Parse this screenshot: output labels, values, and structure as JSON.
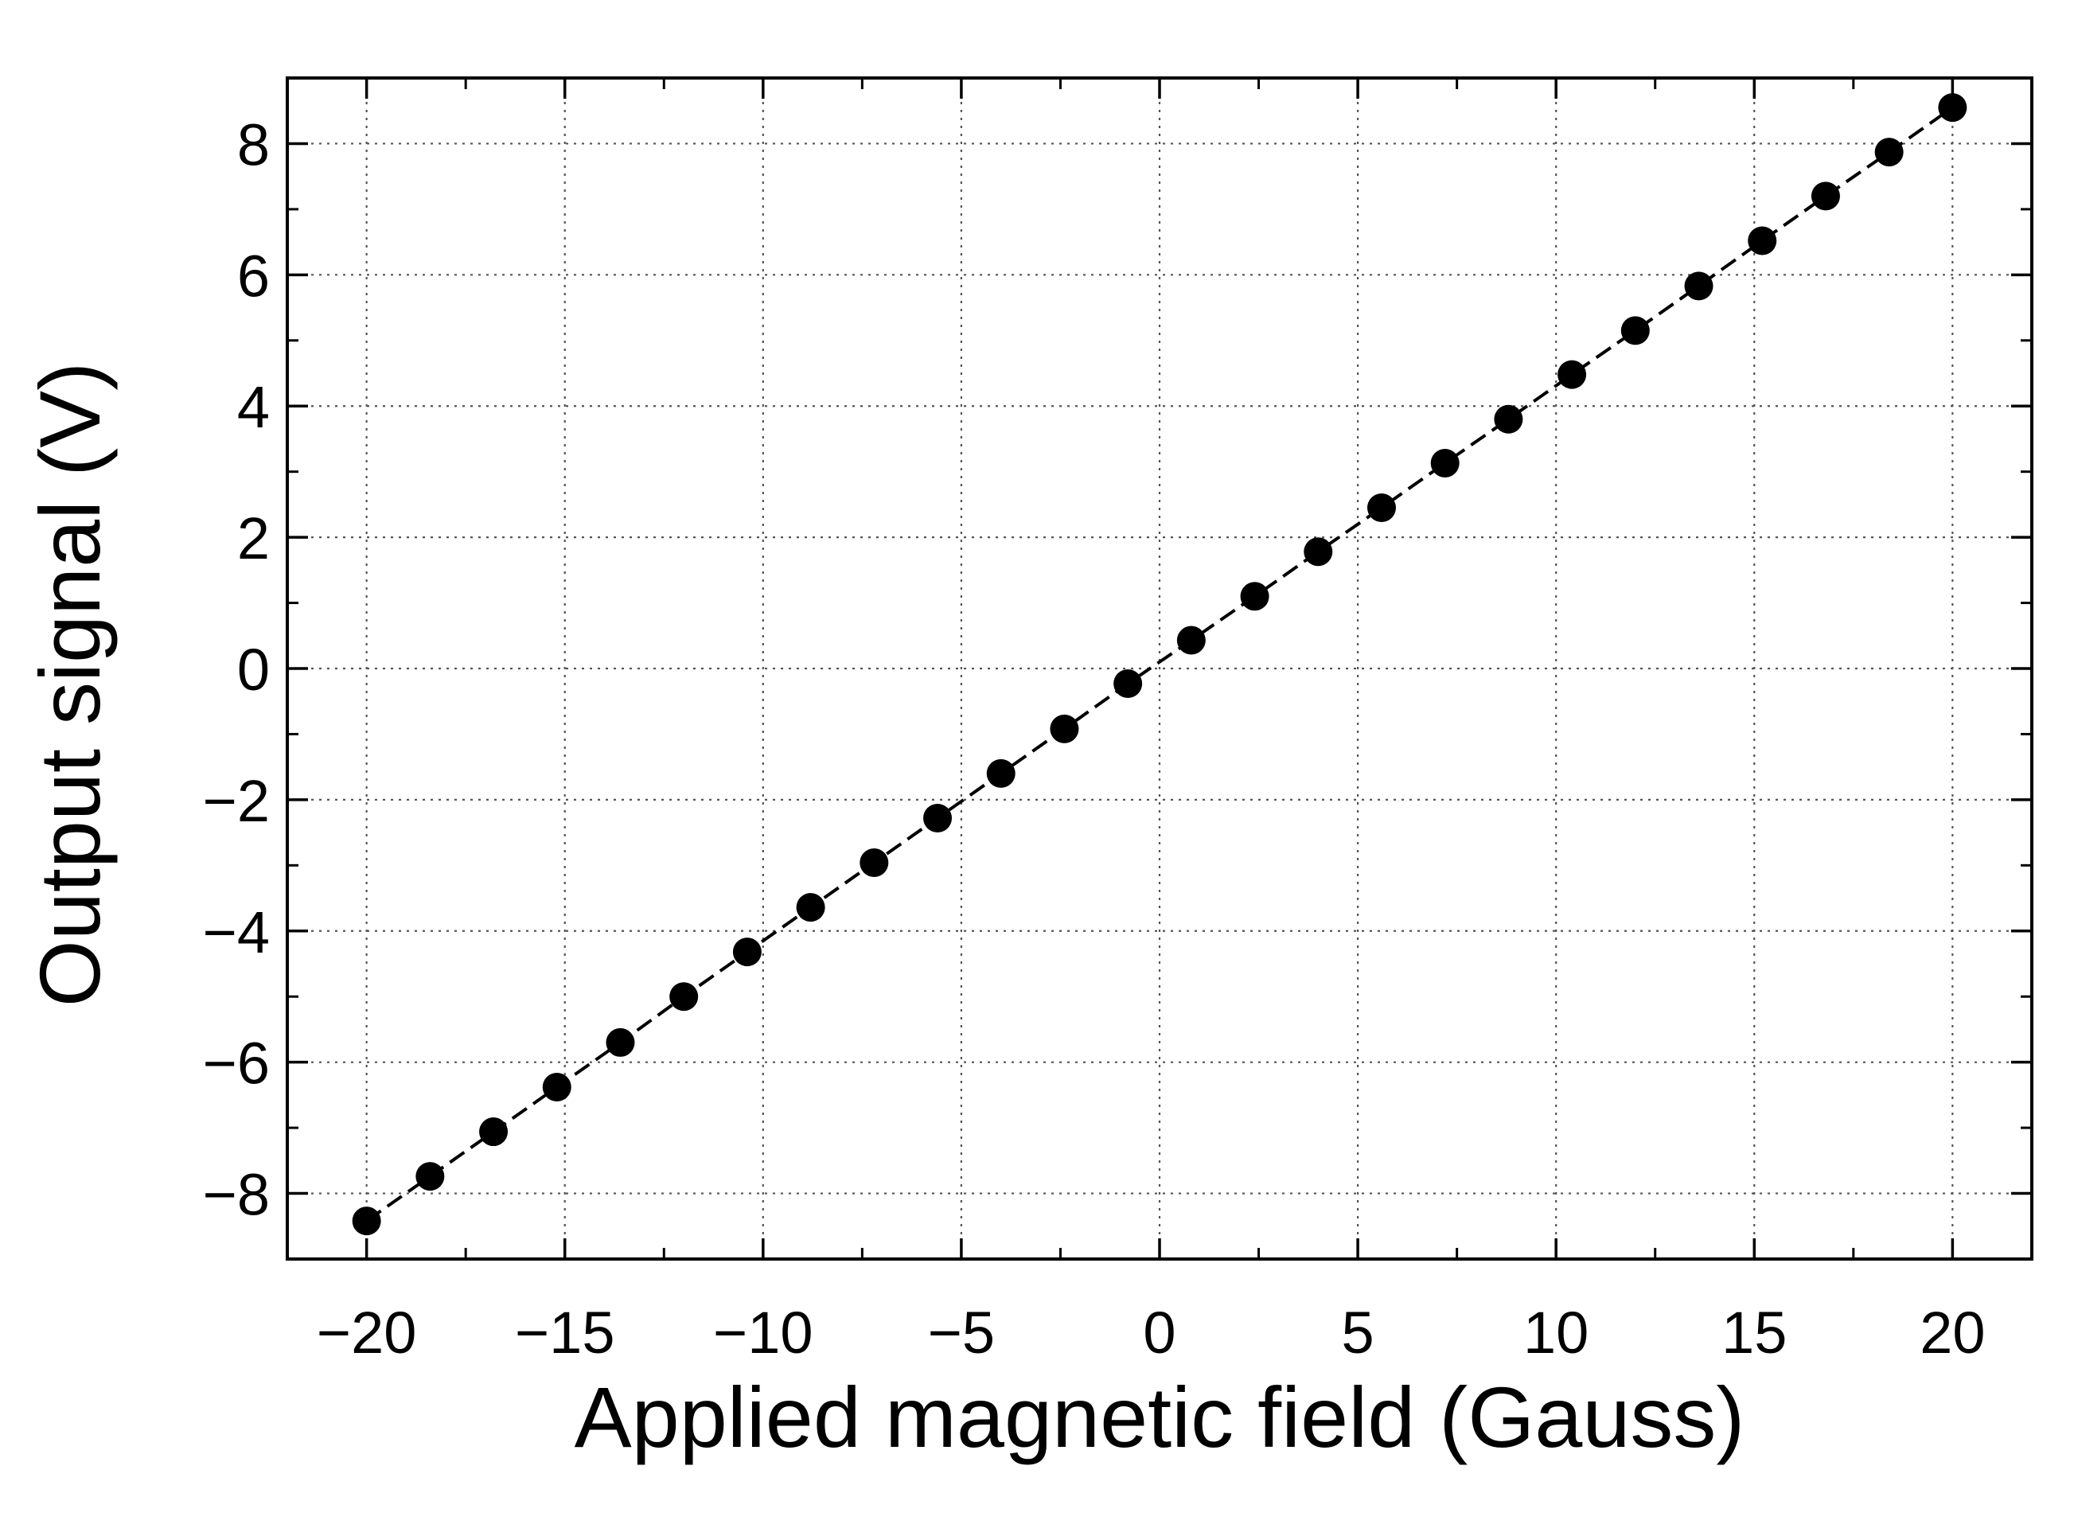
{
  "chart_data": {
    "type": "scatter",
    "title": "",
    "xlabel": "Applied magnetic field (Gauss)",
    "ylabel": "Output signal (V)",
    "xlim": [
      -22,
      22
    ],
    "ylim": [
      -9,
      9
    ],
    "x_ticks": [
      -20,
      -15,
      -10,
      -5,
      0,
      5,
      10,
      15,
      20
    ],
    "x_tick_labels": [
      "−20",
      "−15",
      "−10",
      "−5",
      "0",
      "5",
      "10",
      "15",
      "20"
    ],
    "y_ticks": [
      -8,
      -6,
      -4,
      -2,
      0,
      2,
      4,
      6,
      8
    ],
    "y_tick_labels": [
      "−8",
      "−6",
      "−4",
      "−2",
      "0",
      "2",
      "4",
      "6",
      "8"
    ],
    "grid": true,
    "grid_style": "dotted",
    "fit_line": "dashed",
    "series": [
      {
        "marker": "filled-circle",
        "color": "#000000",
        "x": [
          -20.0,
          -18.4,
          -16.8,
          -15.2,
          -13.6,
          -12.0,
          -10.4,
          -8.8,
          -7.2,
          -5.6,
          -4.0,
          -2.4,
          -0.8,
          0.8,
          2.4,
          4.0,
          5.6,
          7.2,
          8.8,
          10.4,
          12.0,
          13.6,
          15.2,
          16.8,
          18.4,
          20.0
        ],
        "y": [
          -8.42,
          -7.74,
          -7.06,
          -6.38,
          -5.7,
          -5.0,
          -4.32,
          -3.64,
          -2.96,
          -2.28,
          -1.6,
          -0.92,
          -0.23,
          0.43,
          1.1,
          1.78,
          2.45,
          3.13,
          3.8,
          4.48,
          5.15,
          5.83,
          6.52,
          7.2,
          7.87,
          8.55
        ]
      }
    ]
  }
}
